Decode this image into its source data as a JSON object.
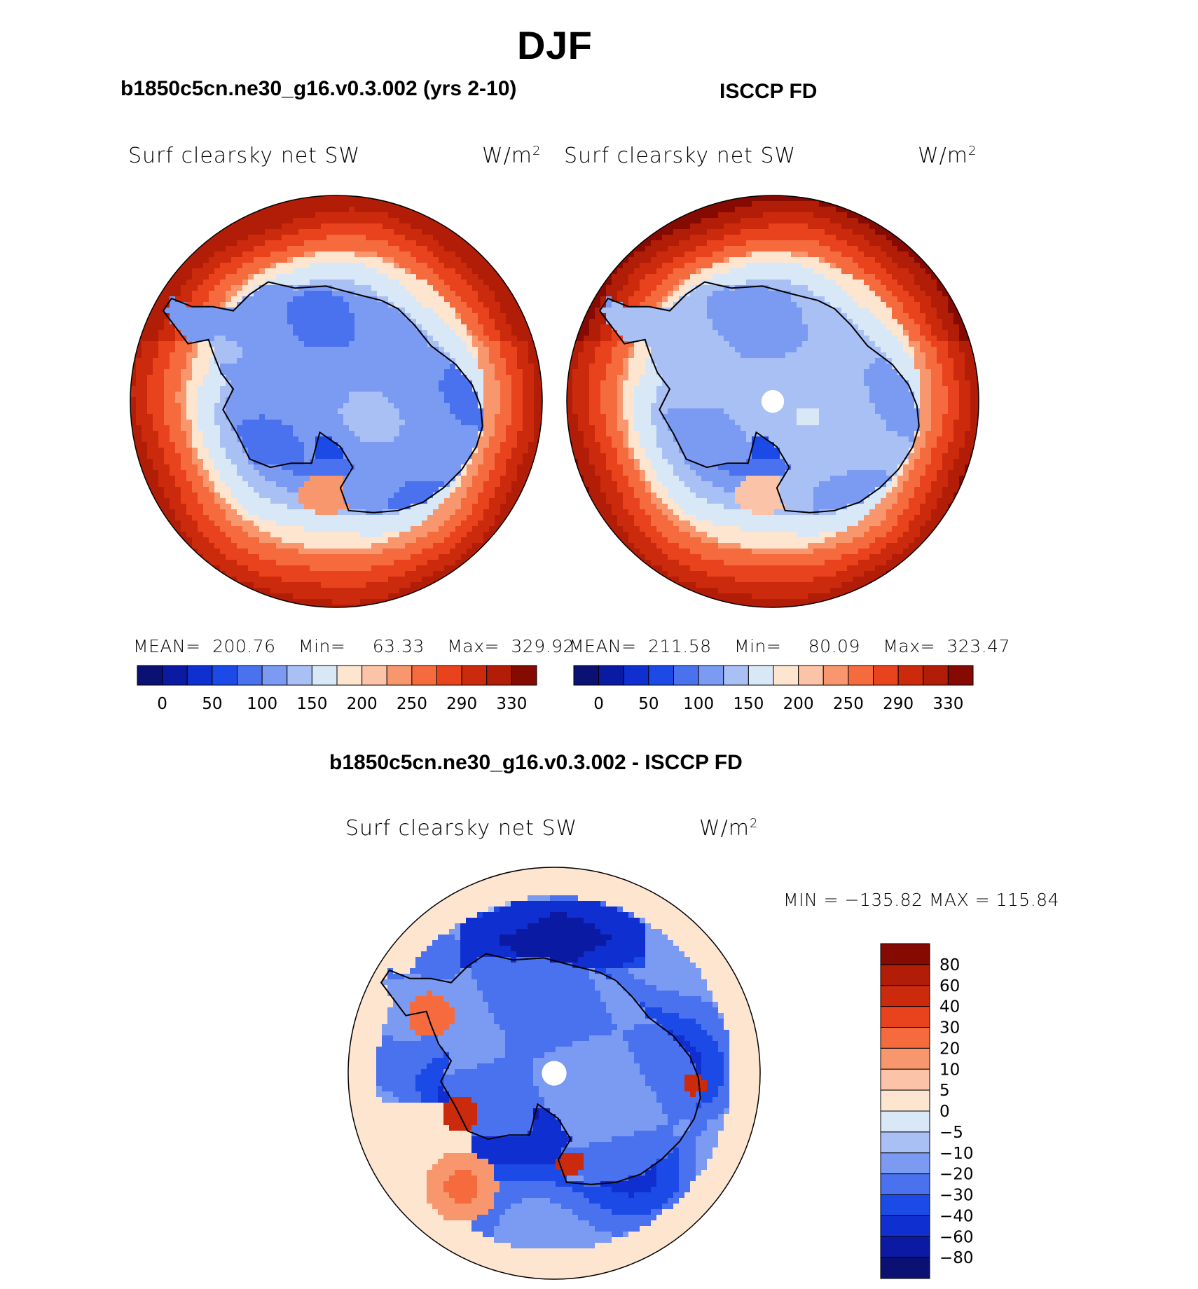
{
  "title": "DJF",
  "chart_data": [
    {
      "type": "heatmap",
      "projection": "south polar stereographic",
      "title": "b1850c5cn.ne30_g16.v0.3.002 (yrs 2-10)",
      "left_label": "Surf clearsky net SW",
      "units": "W/m",
      "units_exp": "2",
      "stats": {
        "mean_label": "MEAN=",
        "mean": "200.76",
        "min_label": "Min=",
        "min": "63.33",
        "max_label": "Max=",
        "max": "329.92"
      },
      "contour_levels": [
        0,
        25,
        50,
        75,
        100,
        125,
        150,
        175,
        200,
        225,
        250,
        270,
        290,
        310,
        330
      ],
      "colorbar_labels": [
        "0",
        "50",
        "100",
        "150",
        "200",
        "250",
        "290",
        "330"
      ],
      "colors": [
        "#0a1173",
        "#0a1aa3",
        "#0f2fd1",
        "#1c4ae6",
        "#4a72ef",
        "#7b9af2",
        "#a9c0f5",
        "#d8e8f7",
        "#fde5d0",
        "#fbc3a8",
        "#f8966d",
        "#f56b3d",
        "#e8431c",
        "#cc2a0c",
        "#b21d07",
        "#840a02"
      ],
      "field": {
        "center": 105,
        "pole_value": 110,
        "outer": 320,
        "west_warm_patch": 240
      }
    },
    {
      "type": "heatmap",
      "projection": "south polar stereographic",
      "title": "ISCCP FD",
      "left_label": "Surf clearsky net SW",
      "units": "W/m",
      "units_exp": "2",
      "stats": {
        "mean_label": "MEAN=",
        "mean": "211.58",
        "min_label": "Min=",
        "min": "80.09",
        "max_label": "Max=",
        "max": "323.47"
      },
      "contour_levels": [
        0,
        25,
        50,
        75,
        100,
        125,
        150,
        175,
        200,
        225,
        250,
        270,
        290,
        310,
        330
      ],
      "colorbar_labels": [
        "0",
        "50",
        "100",
        "150",
        "200",
        "250",
        "290",
        "330"
      ],
      "colors": [
        "#0a1173",
        "#0a1aa3",
        "#0f2fd1",
        "#1c4ae6",
        "#4a72ef",
        "#7b9af2",
        "#a9c0f5",
        "#d8e8f7",
        "#fde5d0",
        "#fbc3a8",
        "#f8966d",
        "#f56b3d",
        "#e8431c",
        "#cc2a0c",
        "#b21d07",
        "#840a02"
      ],
      "field": {
        "center": 125,
        "pole_value": null,
        "outer": 325,
        "west_warm_patch": 215
      }
    },
    {
      "type": "heatmap",
      "projection": "south polar stereographic",
      "title": "b1850c5cn.ne30_g16.v0.3.002 - ISCCP FD",
      "left_label": "Surf clearsky net SW",
      "units": "W/m",
      "units_exp": "2",
      "stats_text": "MIN = −135.82 MAX = 115.84",
      "contour_levels": [
        -80,
        -60,
        -40,
        -30,
        -20,
        -10,
        -5,
        0,
        5,
        10,
        20,
        30,
        40,
        60,
        80
      ],
      "colorbar_labels": [
        "80",
        "60",
        "40",
        "30",
        "20",
        "10",
        "5",
        "0",
        "−5",
        "−10",
        "−20",
        "−30",
        "−40",
        "−60",
        "−80"
      ],
      "colors": [
        "#0a1173",
        "#0a1aa3",
        "#0f2fd1",
        "#1c4ae6",
        "#4a72ef",
        "#7b9af2",
        "#a9c0f5",
        "#d8e8f7",
        "#fde5d0",
        "#fbc3a8",
        "#f8966d",
        "#f56b3d",
        "#e8431c",
        "#cc2a0c",
        "#b21d07",
        "#840a02"
      ]
    }
  ]
}
